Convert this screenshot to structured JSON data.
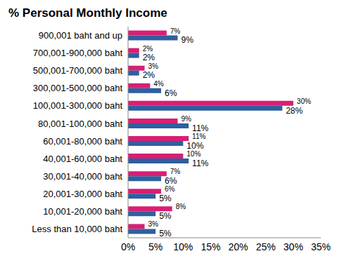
{
  "chart_data": {
    "type": "bar",
    "title": "% Personal Monthly Income",
    "orientation": "horizontal",
    "categories": [
      "900,001 baht and up",
      "700,001-900,000 baht",
      "500,001-700,000 baht",
      "300,001-500,000 baht",
      "100,001-300,000 baht",
      "80,001-100,000 baht",
      "60,001-80,000 baht",
      "40,001-60,000 baht",
      "30,001-40,000 baht",
      "20,001-30,000 baht",
      "10,001-20,000 baht",
      "Less than 10,000 baht"
    ],
    "series": [
      {
        "color": "#d91e75",
        "values": [
          7,
          2,
          3,
          4,
          30,
          9,
          11,
          10,
          7,
          6,
          8,
          3
        ],
        "value_labels": [
          "7%",
          "2%",
          "3%",
          "4%",
          "30%",
          "9%",
          "11%",
          "10%",
          "7%",
          "6%",
          "8%",
          "3%"
        ]
      },
      {
        "color": "#2f5f9e",
        "values": [
          9,
          2,
          2,
          6,
          28,
          11,
          10,
          11,
          6,
          5,
          5,
          5
        ],
        "value_labels": [
          "9%",
          "2%",
          "2%",
          "6%",
          "28%",
          "11%",
          "10%",
          "11%",
          "6%",
          "5%",
          "5%",
          "5%"
        ]
      }
    ],
    "xlim": [
      0,
      35
    ],
    "xticks": [
      {
        "value": 0,
        "label": "0%"
      },
      {
        "value": 5,
        "label": "5%"
      },
      {
        "value": 10,
        "label": "10%"
      },
      {
        "value": 15,
        "label": "15%"
      },
      {
        "value": 20,
        "label": "20%"
      },
      {
        "value": 25,
        "label": "25%"
      },
      {
        "value": 30,
        "label": "30%"
      },
      {
        "value": 35,
        "label": "35%"
      }
    ],
    "grid": false,
    "data_labels": true
  }
}
